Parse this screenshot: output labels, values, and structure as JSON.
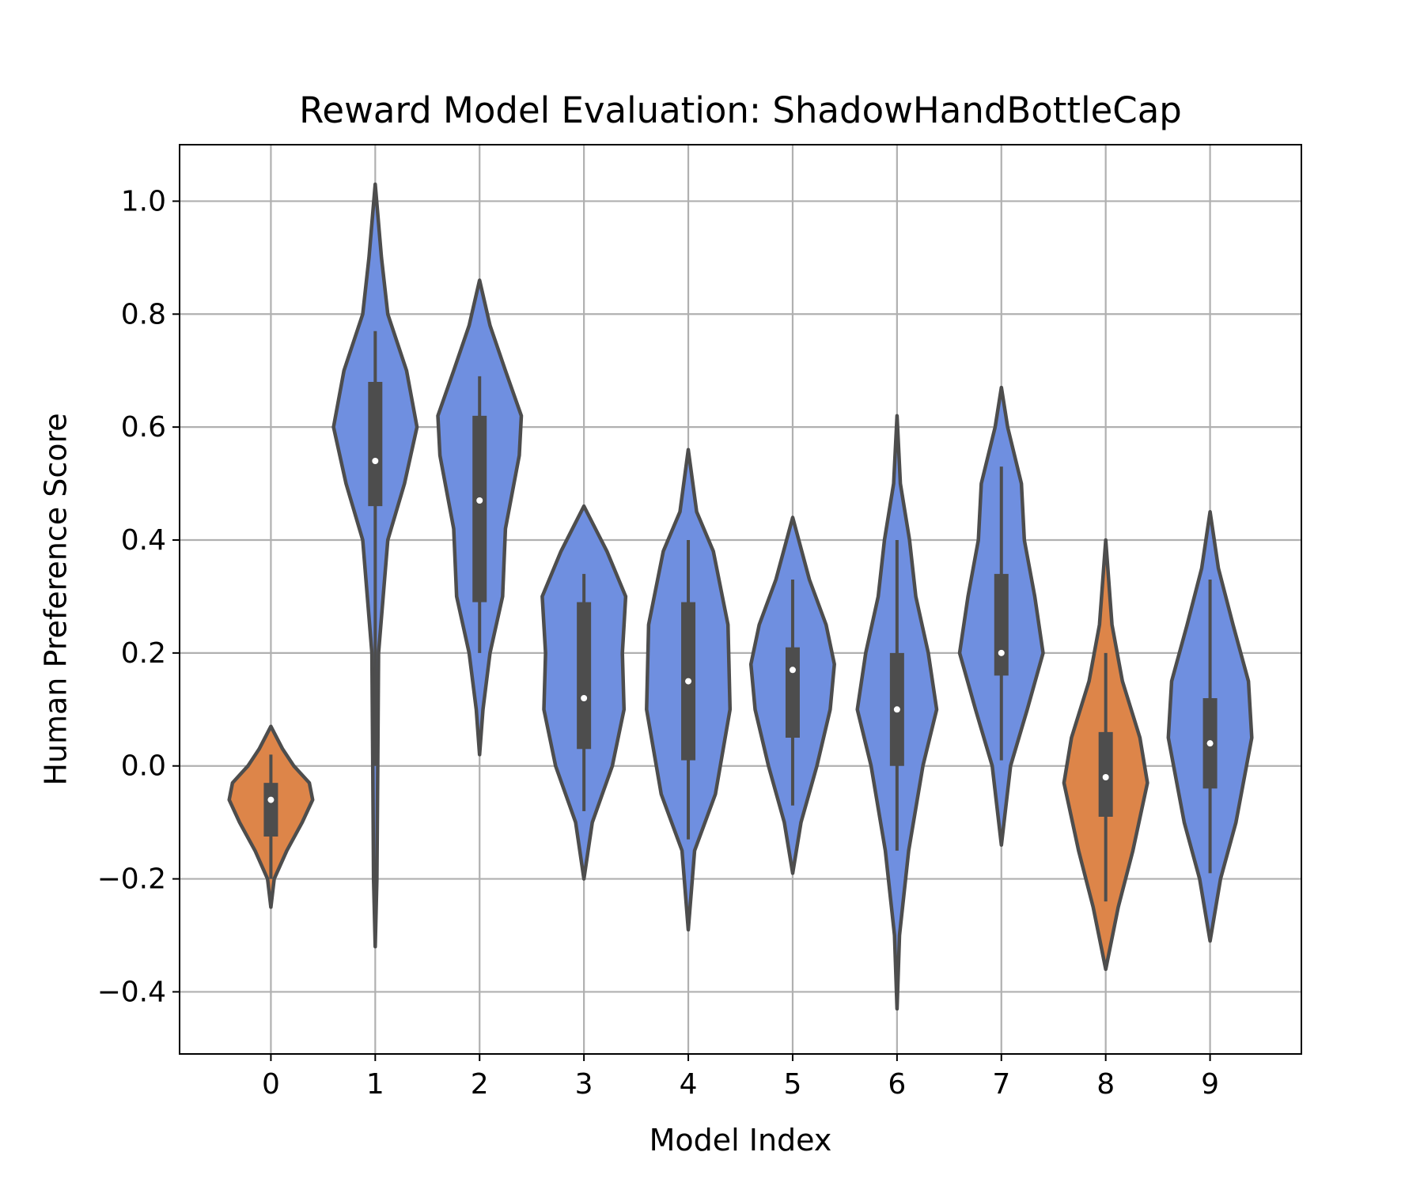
{
  "chart_data": {
    "type": "violin",
    "title": "Reward Model Evaluation: ShadowHandBottleCap",
    "xlabel": "Model Index",
    "ylabel": "Human Preference Score",
    "ylim": [
      -0.51,
      1.1
    ],
    "yticks": [
      -0.4,
      -0.2,
      0.0,
      0.2,
      0.4,
      0.6,
      0.8,
      1.0
    ],
    "ytick_labels": [
      "−0.4",
      "−0.2",
      "0.0",
      "0.2",
      "0.4",
      "0.6",
      "0.8",
      "1.0"
    ],
    "grid": true,
    "colors": {
      "blue": "#6f8fe0",
      "orange": "#dd8549",
      "edge": "#4d4d4d",
      "grid": "#b0b0b0"
    },
    "categories": [
      "0",
      "1",
      "2",
      "3",
      "4",
      "5",
      "6",
      "7",
      "8",
      "9"
    ],
    "violins": [
      {
        "label": "0",
        "color": "orange",
        "min": -0.25,
        "max": 0.07,
        "q1": -0.125,
        "median": -0.06,
        "q3": -0.03,
        "whisker_low": -0.2,
        "whisker_high": 0.02,
        "profile": [
          [
            -0.25,
            0.0
          ],
          [
            -0.2,
            0.08
          ],
          [
            -0.15,
            0.38
          ],
          [
            -0.1,
            0.75
          ],
          [
            -0.06,
            1.0
          ],
          [
            -0.03,
            0.92
          ],
          [
            0.0,
            0.55
          ],
          [
            0.03,
            0.28
          ],
          [
            0.07,
            0.0
          ]
        ]
      },
      {
        "label": "1",
        "color": "blue",
        "min": -0.32,
        "max": 1.03,
        "q1": 0.46,
        "median": 0.54,
        "q3": 0.68,
        "whisker_low": 0.0,
        "whisker_high": 0.77,
        "profile": [
          [
            -0.32,
            0.0
          ],
          [
            -0.2,
            0.04
          ],
          [
            0.0,
            0.06
          ],
          [
            0.2,
            0.08
          ],
          [
            0.4,
            0.3
          ],
          [
            0.5,
            0.7
          ],
          [
            0.6,
            1.0
          ],
          [
            0.7,
            0.75
          ],
          [
            0.8,
            0.3
          ],
          [
            0.9,
            0.15
          ],
          [
            1.03,
            0.0
          ]
        ]
      },
      {
        "label": "2",
        "color": "blue",
        "min": 0.02,
        "max": 0.86,
        "q1": 0.29,
        "median": 0.47,
        "q3": 0.62,
        "whisker_low": 0.2,
        "whisker_high": 0.69,
        "profile": [
          [
            0.02,
            0.0
          ],
          [
            0.1,
            0.08
          ],
          [
            0.2,
            0.25
          ],
          [
            0.3,
            0.55
          ],
          [
            0.42,
            0.62
          ],
          [
            0.55,
            0.95
          ],
          [
            0.62,
            1.0
          ],
          [
            0.7,
            0.62
          ],
          [
            0.78,
            0.25
          ],
          [
            0.86,
            0.0
          ]
        ]
      },
      {
        "label": "3",
        "color": "blue",
        "min": -0.2,
        "max": 0.46,
        "q1": 0.03,
        "median": 0.12,
        "q3": 0.29,
        "whisker_low": -0.08,
        "whisker_high": 0.34,
        "profile": [
          [
            -0.2,
            0.0
          ],
          [
            -0.1,
            0.2
          ],
          [
            0.0,
            0.68
          ],
          [
            0.1,
            0.96
          ],
          [
            0.2,
            0.92
          ],
          [
            0.3,
            1.0
          ],
          [
            0.38,
            0.55
          ],
          [
            0.46,
            0.0
          ]
        ]
      },
      {
        "label": "4",
        "color": "blue",
        "min": -0.29,
        "max": 0.56,
        "q1": 0.01,
        "median": 0.15,
        "q3": 0.29,
        "whisker_low": -0.13,
        "whisker_high": 0.4,
        "profile": [
          [
            -0.29,
            0.0
          ],
          [
            -0.15,
            0.15
          ],
          [
            -0.05,
            0.65
          ],
          [
            0.1,
            1.0
          ],
          [
            0.25,
            0.95
          ],
          [
            0.38,
            0.6
          ],
          [
            0.45,
            0.2
          ],
          [
            0.56,
            0.0
          ]
        ]
      },
      {
        "label": "5",
        "color": "blue",
        "min": -0.19,
        "max": 0.44,
        "q1": 0.05,
        "median": 0.17,
        "q3": 0.21,
        "whisker_low": -0.07,
        "whisker_high": 0.33,
        "profile": [
          [
            -0.19,
            0.0
          ],
          [
            -0.1,
            0.2
          ],
          [
            0.0,
            0.58
          ],
          [
            0.1,
            0.9
          ],
          [
            0.18,
            1.0
          ],
          [
            0.25,
            0.8
          ],
          [
            0.33,
            0.4
          ],
          [
            0.44,
            0.0
          ]
        ]
      },
      {
        "label": "6",
        "color": "blue",
        "min": -0.43,
        "max": 0.62,
        "q1": 0.0,
        "median": 0.1,
        "q3": 0.2,
        "whisker_low": -0.15,
        "whisker_high": 0.4,
        "profile": [
          [
            -0.43,
            0.0
          ],
          [
            -0.3,
            0.06
          ],
          [
            -0.15,
            0.28
          ],
          [
            0.0,
            0.62
          ],
          [
            0.1,
            0.95
          ],
          [
            0.2,
            0.75
          ],
          [
            0.3,
            0.45
          ],
          [
            0.4,
            0.3
          ],
          [
            0.5,
            0.08
          ],
          [
            0.62,
            0.0
          ]
        ]
      },
      {
        "label": "7",
        "color": "blue",
        "min": -0.14,
        "max": 0.67,
        "q1": 0.16,
        "median": 0.2,
        "q3": 0.34,
        "whisker_low": 0.01,
        "whisker_high": 0.53,
        "profile": [
          [
            -0.14,
            0.0
          ],
          [
            0.0,
            0.22
          ],
          [
            0.1,
            0.62
          ],
          [
            0.2,
            1.0
          ],
          [
            0.3,
            0.8
          ],
          [
            0.4,
            0.55
          ],
          [
            0.5,
            0.48
          ],
          [
            0.6,
            0.15
          ],
          [
            0.67,
            0.0
          ]
        ]
      },
      {
        "label": "8",
        "color": "orange",
        "min": -0.36,
        "max": 0.4,
        "q1": -0.09,
        "median": -0.02,
        "q3": 0.06,
        "whisker_low": -0.24,
        "whisker_high": 0.2,
        "profile": [
          [
            -0.36,
            0.0
          ],
          [
            -0.25,
            0.3
          ],
          [
            -0.15,
            0.65
          ],
          [
            -0.03,
            1.0
          ],
          [
            0.05,
            0.82
          ],
          [
            0.15,
            0.4
          ],
          [
            0.25,
            0.15
          ],
          [
            0.4,
            0.0
          ]
        ]
      },
      {
        "label": "9",
        "color": "blue",
        "min": -0.31,
        "max": 0.45,
        "q1": -0.04,
        "median": 0.04,
        "q3": 0.12,
        "whisker_low": -0.19,
        "whisker_high": 0.33,
        "profile": [
          [
            -0.31,
            0.0
          ],
          [
            -0.2,
            0.25
          ],
          [
            -0.1,
            0.62
          ],
          [
            0.05,
            1.0
          ],
          [
            0.15,
            0.92
          ],
          [
            0.25,
            0.55
          ],
          [
            0.35,
            0.2
          ],
          [
            0.45,
            0.0
          ]
        ]
      }
    ]
  }
}
